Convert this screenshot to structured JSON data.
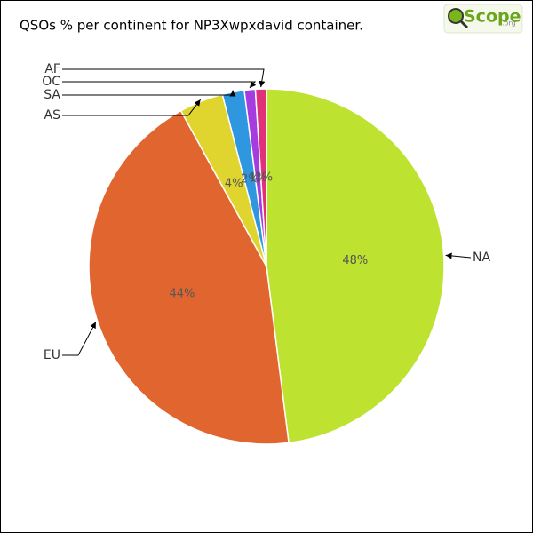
{
  "chart_data": {
    "type": "pie",
    "title": "QSOs % per continent for NP3Xwpxdavid container.",
    "logo": {
      "text": "Scope",
      "suffix": ".org"
    },
    "categories": [
      "NA",
      "EU",
      "AS",
      "SA",
      "OC",
      "AF"
    ],
    "values": [
      48,
      44,
      4,
      2,
      1,
      1
    ],
    "value_labels": [
      "48%",
      "44%",
      "4%",
      "2%",
      "1%",
      "1%"
    ],
    "colors": [
      "#bde22f",
      "#e0652f",
      "#e0d52f",
      "#2f97e0",
      "#a43ce0",
      "#e0307a"
    ]
  }
}
